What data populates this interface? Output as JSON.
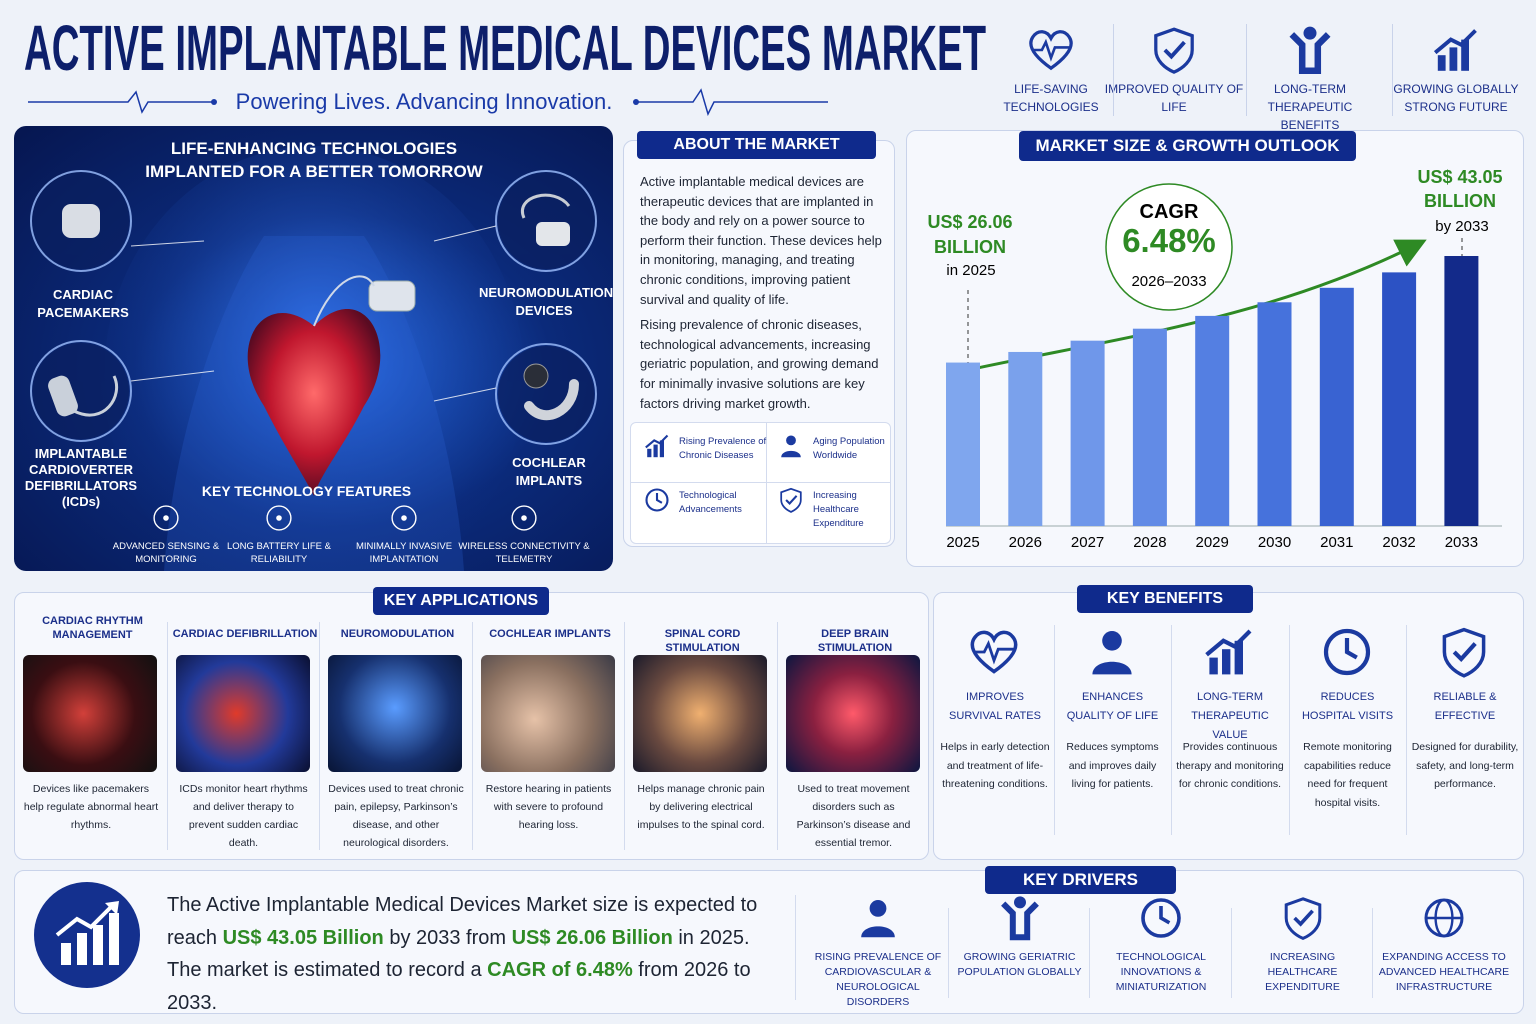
{
  "header": {
    "title": "ACTIVE IMPLANTABLE MEDICAL DEVICES MARKET",
    "tagline": "Powering Lives. Advancing Innovation.",
    "badges": [
      "LIFE-SAVING TECHNOLOGIES",
      "IMPROVED QUALITY OF LIFE",
      "LONG-TERM THERAPEUTIC BENEFITS",
      "GROWING GLOBALLY STRONG FUTURE"
    ]
  },
  "hero": {
    "title": "LIFE-ENHANCING TECHNOLOGIES IMPLANTED FOR A BETTER TOMORROW",
    "devices": [
      "CARDIAC PACEMAKERS",
      "NEUROMODULATION DEVICES",
      "IMPLANTABLE CARDIOVERTER DEFIBRILLATORS (ICDs)",
      "COCHLEAR IMPLANTS"
    ],
    "features_title": "KEY TECHNOLOGY FEATURES",
    "features": [
      "ADVANCED SENSING & MONITORING",
      "LONG BATTERY LIFE & RELIABILITY",
      "MINIMALLY INVASIVE IMPLANTATION",
      "WIRELESS CONNECTIVITY & TELEMETRY"
    ]
  },
  "about": {
    "title": "ABOUT THE MARKET",
    "paragraphs": [
      "Active implantable medical devices are therapeutic devices that are implanted in the body and rely on a power source to perform their function. These devices help in monitoring, managing, and treating chronic conditions, improving patient survival and quality of life.",
      "Rising prevalence of chronic diseases, technological advancements, increasing geriatric population, and growing demand for minimally invasive solutions are key factors driving market growth."
    ],
    "factors": [
      "Rising Prevalence of Chronic Diseases",
      "Aging Population Worldwide",
      "Technological Advancements",
      "Increasing Healthcare Expenditure"
    ]
  },
  "chart_data": {
    "type": "bar",
    "title": "MARKET SIZE & GROWTH OUTLOOK",
    "categories": [
      "2025",
      "2026",
      "2027",
      "2028",
      "2029",
      "2030",
      "2031",
      "2032",
      "2033"
    ],
    "values": [
      26.06,
      27.75,
      29.55,
      31.46,
      33.5,
      35.67,
      37.98,
      40.44,
      43.05
    ],
    "value_labels": [
      "US$ 26.06 BILLION",
      null,
      null,
      null,
      null,
      null,
      null,
      null,
      "US$ 43.05 BILLION"
    ],
    "colors": [
      "#7fa6ee",
      "#7aa1ec",
      "#6f97ea",
      "#628be6",
      "#547fe2",
      "#4672dc",
      "#3963d2",
      "#2c52c4",
      "#132a8a"
    ],
    "cagr_label": "CAGR",
    "cagr": "6.48%",
    "cagr_period": "2026–2033",
    "start_note": "in 2025",
    "end_note": "by 2033"
  },
  "applications": {
    "title": "KEY APPLICATIONS",
    "items": [
      {
        "name": "CARDIAC RHYTHM MANAGEMENT",
        "desc": "Devices like pacemakers help regulate abnormal heart rhythms."
      },
      {
        "name": "CARDIAC DEFIBRILLATION",
        "desc": "ICDs monitor heart rhythms and deliver therapy to prevent sudden cardiac death."
      },
      {
        "name": "NEUROMODULATION",
        "desc": "Devices used to treat chronic pain, epilepsy, Parkinson’s disease, and other neurological disorders."
      },
      {
        "name": "COCHLEAR IMPLANTS",
        "desc": "Restore hearing in patients with severe to profound hearing loss."
      },
      {
        "name": "SPINAL CORD STIMULATION",
        "desc": "Helps manage chronic pain by delivering electrical impulses to the spinal cord."
      },
      {
        "name": "DEEP BRAIN STIMULATION",
        "desc": "Used to treat movement disorders such as Parkinson’s disease and essential tremor."
      }
    ]
  },
  "benefits": {
    "title": "KEY BENEFITS",
    "items": [
      {
        "name": "IMPROVES SURVIVAL RATES",
        "desc": "Helps in early detection and treatment of life-threatening conditions."
      },
      {
        "name": "ENHANCES QUALITY OF LIFE",
        "desc": "Reduces symptoms and improves daily living for patients."
      },
      {
        "name": "LONG-TERM THERAPEUTIC VALUE",
        "desc": "Provides continuous therapy and monitoring for chronic conditions."
      },
      {
        "name": "REDUCES HOSPITAL VISITS",
        "desc": "Remote monitoring capabilities reduce need for frequent hospital visits."
      },
      {
        "name": "RELIABLE & EFFECTIVE",
        "desc": "Designed for durability, safety, and long-term performance."
      }
    ]
  },
  "summary": {
    "parts": [
      "The Active Implantable Medical Devices Market size is expected to reach ",
      "US$ 43.05 Billion",
      " by 2033 from ",
      "US$ 26.06 Billion",
      " in 2025. The market is estimated to record a ",
      "CAGR of 6.48%",
      " from 2026 to 2033."
    ]
  },
  "drivers": {
    "title": "KEY DRIVERS",
    "items": [
      "RISING PREVALENCE OF CARDIOVASCULAR & NEUROLOGICAL DISORDERS",
      "GROWING GERIATRIC POPULATION GLOBALLY",
      "TECHNOLOGICAL INNOVATIONS & MINIATURIZATION",
      "INCREASING HEALTHCARE EXPENDITURE",
      "EXPANDING ACCESS TO ADVANCED HEALTHCARE INFRASTRUCTURE"
    ]
  }
}
